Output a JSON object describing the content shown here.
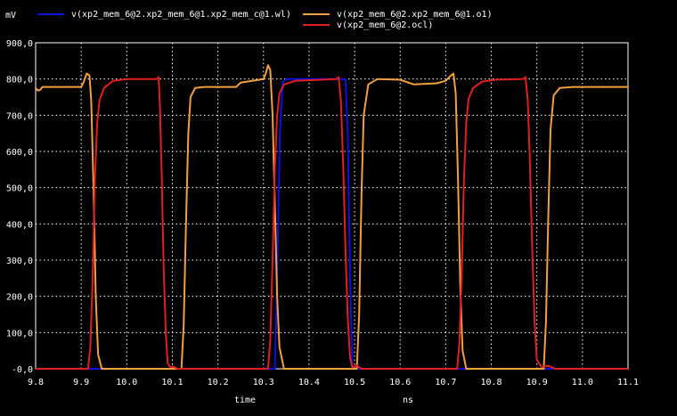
{
  "chart_data": {
    "type": "line",
    "y_unit": "mV",
    "x_unit": "ns",
    "xlabel": "time",
    "xlim": [
      9.8,
      11.1
    ],
    "ylim": [
      -0.0,
      900.0
    ],
    "x_ticks": [
      "9.8",
      "9.9",
      "10.0",
      "10.1",
      "10.2",
      "10.3",
      "10.4",
      "10.5",
      "10.6",
      "10.7",
      "10.8",
      "10.9",
      "11.0",
      "11.1"
    ],
    "y_ticks": [
      "-0,0",
      "100,0",
      "200,0",
      "300,0",
      "400,0",
      "500,0",
      "600,0",
      "700,0",
      "800,0",
      "900,0"
    ],
    "grid": true,
    "legend_position": "top",
    "series": [
      {
        "name": "v(xp2_mem_6@2.xp2_mem_6@1.xp2_mem_c@1.wl)",
        "color": "#1010dd",
        "points": [
          [
            9.8,
            0
          ],
          [
            10.325,
            0
          ],
          [
            10.33,
            250
          ],
          [
            10.336,
            650
          ],
          [
            10.342,
            790
          ],
          [
            10.35,
            800
          ],
          [
            10.48,
            800
          ],
          [
            10.485,
            650
          ],
          [
            10.49,
            250
          ],
          [
            10.495,
            0
          ],
          [
            11.1,
            0
          ]
        ]
      },
      {
        "name": "v(xp2_mem_6@2.xp2_mem_6@1.o1)",
        "color": "#f0a040",
        "points": [
          [
            9.8,
            775
          ],
          [
            9.805,
            768
          ],
          [
            9.81,
            770
          ],
          [
            9.815,
            778
          ],
          [
            9.9,
            778
          ],
          [
            9.905,
            790
          ],
          [
            9.912,
            815
          ],
          [
            9.918,
            810
          ],
          [
            9.922,
            740
          ],
          [
            9.927,
            500
          ],
          [
            9.932,
            200
          ],
          [
            9.937,
            40
          ],
          [
            9.945,
            0
          ],
          [
            10.12,
            0
          ],
          [
            10.125,
            120
          ],
          [
            10.13,
            400
          ],
          [
            10.135,
            650
          ],
          [
            10.14,
            750
          ],
          [
            10.15,
            775
          ],
          [
            10.17,
            778
          ],
          [
            10.24,
            778
          ],
          [
            10.25,
            790
          ],
          [
            10.3,
            800
          ],
          [
            10.305,
            815
          ],
          [
            10.31,
            838
          ],
          [
            10.315,
            825
          ],
          [
            10.32,
            700
          ],
          [
            10.325,
            450
          ],
          [
            10.33,
            200
          ],
          [
            10.335,
            60
          ],
          [
            10.345,
            0
          ],
          [
            10.505,
            0
          ],
          [
            10.51,
            150
          ],
          [
            10.515,
            480
          ],
          [
            10.52,
            700
          ],
          [
            10.53,
            785
          ],
          [
            10.55,
            800
          ],
          [
            10.6,
            798
          ],
          [
            10.63,
            785
          ],
          [
            10.68,
            788
          ],
          [
            10.7,
            795
          ],
          [
            10.71,
            808
          ],
          [
            10.717,
            815
          ],
          [
            10.722,
            760
          ],
          [
            10.727,
            520
          ],
          [
            10.732,
            220
          ],
          [
            10.737,
            50
          ],
          [
            10.745,
            0
          ],
          [
            10.915,
            0
          ],
          [
            10.92,
            130
          ],
          [
            10.925,
            420
          ],
          [
            10.93,
            660
          ],
          [
            10.937,
            755
          ],
          [
            10.95,
            775
          ],
          [
            10.98,
            778
          ],
          [
            11.1,
            778
          ]
        ]
      },
      {
        "name": "v(xp2_mem_6@2.ocl)",
        "color": "#e02020",
        "points": [
          [
            9.8,
            0
          ],
          [
            9.915,
            0
          ],
          [
            9.92,
            60
          ],
          [
            9.925,
            240
          ],
          [
            9.93,
            520
          ],
          [
            9.935,
            680
          ],
          [
            9.94,
            740
          ],
          [
            9.95,
            775
          ],
          [
            9.97,
            795
          ],
          [
            10.0,
            800
          ],
          [
            10.065,
            800
          ],
          [
            10.07,
            805
          ],
          [
            10.073,
            720
          ],
          [
            10.077,
            520
          ],
          [
            10.081,
            280
          ],
          [
            10.086,
            90
          ],
          [
            10.09,
            15
          ],
          [
            10.095,
            5
          ],
          [
            10.105,
            5
          ],
          [
            10.11,
            0
          ],
          [
            10.31,
            0
          ],
          [
            10.315,
            80
          ],
          [
            10.32,
            300
          ],
          [
            10.325,
            560
          ],
          [
            10.33,
            700
          ],
          [
            10.335,
            760
          ],
          [
            10.345,
            785
          ],
          [
            10.37,
            795
          ],
          [
            10.46,
            800
          ],
          [
            10.465,
            805
          ],
          [
            10.47,
            740
          ],
          [
            10.475,
            560
          ],
          [
            10.48,
            330
          ],
          [
            10.485,
            140
          ],
          [
            10.49,
            30
          ],
          [
            10.495,
            5
          ],
          [
            10.505,
            8
          ],
          [
            10.515,
            0
          ],
          [
            10.725,
            0
          ],
          [
            10.73,
            70
          ],
          [
            10.735,
            260
          ],
          [
            10.74,
            520
          ],
          [
            10.745,
            680
          ],
          [
            10.75,
            745
          ],
          [
            10.76,
            775
          ],
          [
            10.78,
            793
          ],
          [
            10.81,
            798
          ],
          [
            10.87,
            800
          ],
          [
            10.875,
            805
          ],
          [
            10.88,
            740
          ],
          [
            10.885,
            560
          ],
          [
            10.89,
            320
          ],
          [
            10.895,
            130
          ],
          [
            10.9,
            25
          ],
          [
            10.91,
            5
          ],
          [
            10.925,
            8
          ],
          [
            10.94,
            0
          ],
          [
            11.1,
            0
          ]
        ]
      }
    ]
  }
}
